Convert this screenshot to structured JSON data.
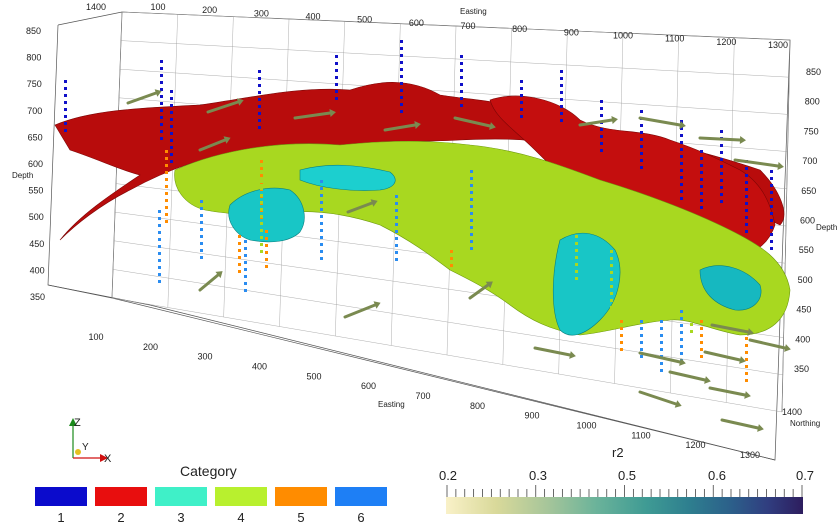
{
  "scene": {
    "easting_title": "Easting",
    "northing_title": "Northing",
    "depth_title": "Depth",
    "top_easting_ticks": [
      "100",
      "200",
      "300",
      "400",
      "500",
      "600",
      "700",
      "800",
      "900",
      "1000",
      "1100",
      "1200",
      "1300"
    ],
    "top_left_northing": "1400",
    "left_depth_ticks": [
      "850",
      "800",
      "750",
      "700",
      "650",
      "600",
      "550",
      "500",
      "450",
      "400",
      "350"
    ],
    "bottom_easting_ticks": [
      "100",
      "200",
      "300",
      "400",
      "500",
      "600",
      "700",
      "800",
      "900",
      "1000",
      "1100",
      "1200",
      "1300"
    ],
    "right_depth_ticks": [
      "850",
      "800",
      "750",
      "700",
      "650",
      "600",
      "550",
      "500",
      "450",
      "400",
      "350"
    ],
    "right_northing_label": "1400"
  },
  "orientation": {
    "z": "Z",
    "y": "Y",
    "x": "X"
  },
  "category_legend": {
    "title": "Category",
    "items": [
      {
        "label": "1",
        "color": "#0b0bcc"
      },
      {
        "label": "2",
        "color": "#e80e0e"
      },
      {
        "label": "3",
        "color": "#3ff0c8"
      },
      {
        "label": "4",
        "color": "#b8f02e"
      },
      {
        "label": "5",
        "color": "#ff8c00"
      },
      {
        "label": "6",
        "color": "#1e7ff5"
      }
    ]
  },
  "r2_legend": {
    "title": "r2",
    "ticks": [
      "0.2",
      "0.3",
      "0.5",
      "0.6",
      "0.7"
    ]
  },
  "colors": {
    "red_surface": "#b80c0c",
    "green_surface": "#a8d820",
    "cyan_surface": "#18c6c6",
    "blue_points": "#1010c8",
    "orange_points": "#ff8c00",
    "lightblue_points": "#2a8cf0",
    "arrow": "#7a8a50"
  }
}
